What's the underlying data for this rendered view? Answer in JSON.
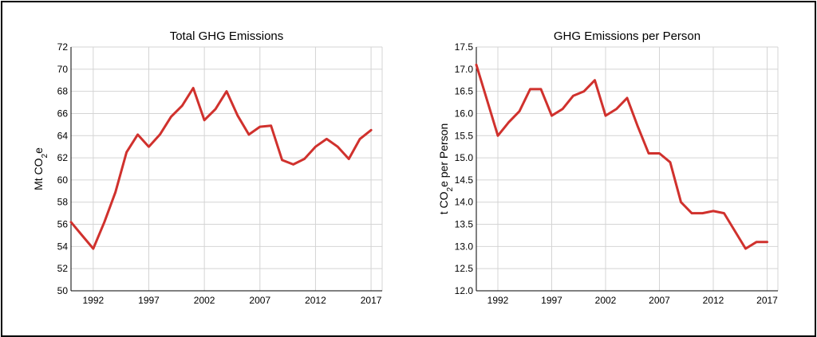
{
  "line_color": "#d0312d",
  "chart_data": [
    {
      "type": "line",
      "title": "Total GHG Emissions",
      "ylabel_main": "Mt CO",
      "ylabel_sub": "2",
      "ylabel_tail": "e",
      "xlim": [
        1990,
        2018
      ],
      "ylim": [
        50,
        72
      ],
      "yticks": [
        50,
        52,
        54,
        56,
        58,
        60,
        62,
        64,
        66,
        68,
        70,
        72
      ],
      "ytick_labels": [
        "50",
        "52",
        "54",
        "56",
        "58",
        "60",
        "62",
        "64",
        "66",
        "68",
        "70",
        "72"
      ],
      "xticks": [
        1992,
        1997,
        2002,
        2007,
        2012,
        2017
      ],
      "xtick_labels": [
        "1992",
        "1997",
        "2002",
        "2007",
        "2012",
        "2017"
      ],
      "grid": true,
      "series": [
        {
          "x": [
            1990,
            1991,
            1992,
            1993,
            1994,
            1995,
            1996,
            1997,
            1998,
            1999,
            2000,
            2001,
            2002,
            2003,
            2004,
            2005,
            2006,
            2007,
            2008,
            2009,
            2010,
            2011,
            2012,
            2013,
            2014,
            2015,
            2016,
            2017
          ],
          "values": [
            56.2,
            55.0,
            53.8,
            56.2,
            58.9,
            62.5,
            64.1,
            63.0,
            64.1,
            65.7,
            66.7,
            68.3,
            65.4,
            66.4,
            68.0,
            65.8,
            64.1,
            64.8,
            64.9,
            61.8,
            61.4,
            61.9,
            63.0,
            63.7,
            63.0,
            61.9,
            63.7,
            64.5
          ]
        }
      ]
    },
    {
      "type": "line",
      "title": "GHG Emissions per Person",
      "ylabel_main": "t CO",
      "ylabel_sub": "2",
      "ylabel_tail": "e per Person",
      "xlim": [
        1990,
        2018
      ],
      "ylim": [
        12.0,
        17.5
      ],
      "yticks": [
        12.0,
        12.5,
        13.0,
        13.5,
        14.0,
        14.5,
        15.0,
        15.5,
        16.0,
        16.5,
        17.0,
        17.5
      ],
      "ytick_labels": [
        "12.0",
        "12.5",
        "13.0",
        "13.5",
        "14.0",
        "14.5",
        "15.0",
        "15.5",
        "16.0",
        "16.5",
        "17.0",
        "17.5"
      ],
      "xticks": [
        1992,
        1997,
        2002,
        2007,
        2012,
        2017
      ],
      "xtick_labels": [
        "1992",
        "1997",
        "2002",
        "2007",
        "2012",
        "2017"
      ],
      "grid": true,
      "series": [
        {
          "x": [
            1990,
            1991,
            1992,
            1993,
            1994,
            1995,
            1996,
            1997,
            1998,
            1999,
            2000,
            2001,
            2002,
            2003,
            2004,
            2005,
            2006,
            2007,
            2008,
            2009,
            2010,
            2011,
            2012,
            2013,
            2014,
            2015,
            2016,
            2017
          ],
          "values": [
            17.1,
            16.3,
            15.5,
            15.8,
            16.05,
            16.55,
            16.55,
            15.95,
            16.1,
            16.4,
            16.5,
            16.75,
            15.95,
            16.1,
            16.35,
            15.7,
            15.1,
            15.1,
            14.9,
            14.0,
            13.75,
            13.75,
            13.8,
            13.75,
            13.35,
            12.95,
            13.1,
            13.1
          ]
        }
      ]
    }
  ]
}
